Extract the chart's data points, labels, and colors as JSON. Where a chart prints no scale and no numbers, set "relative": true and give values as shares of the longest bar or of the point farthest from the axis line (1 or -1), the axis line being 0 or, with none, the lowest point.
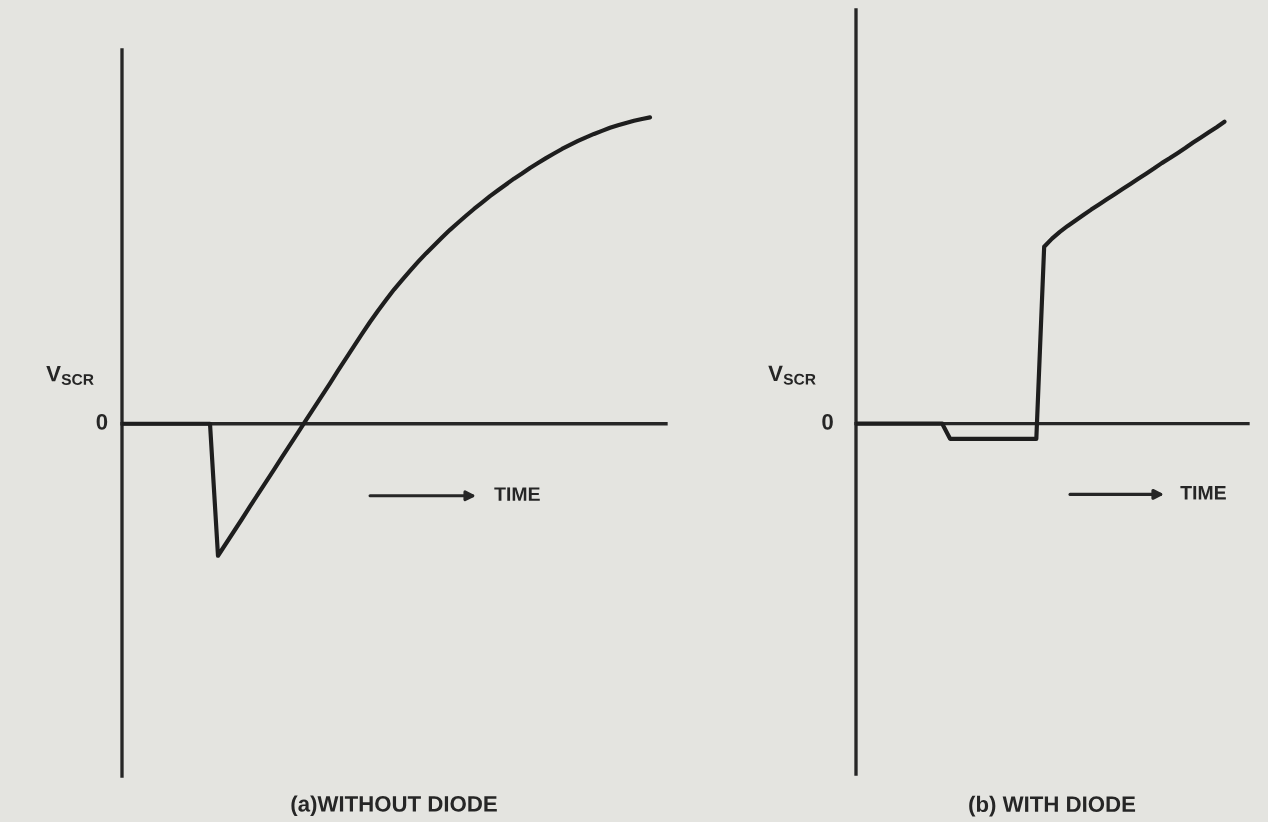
{
  "chart_data": [
    {
      "type": "line",
      "title": "(a)WITHOUT DIODE",
      "ylabel": "V$_{SCR}$",
      "xlabel": "TIME",
      "relative": true,
      "annotations": [
        "0"
      ],
      "categories": [
        null,
        null,
        null,
        null,
        null,
        null,
        null,
        null,
        null,
        null,
        null,
        null,
        null,
        null,
        null,
        null,
        null,
        null,
        null,
        null,
        null,
        null,
        null,
        null,
        null,
        null,
        null,
        null,
        null,
        null,
        null,
        null,
        null,
        null,
        null,
        null,
        null,
        null,
        null,
        null,
        null,
        null,
        null,
        null,
        null,
        null,
        null,
        null,
        null,
        null,
        null,
        null,
        null,
        null,
        null,
        null,
        null,
        null,
        null,
        null,
        null,
        null,
        null,
        null,
        null,
        null,
        null,
        null,
        null
      ],
      "series": [
        {
          "color": "#1e1e1e",
          "values": [
            0,
            0,
            0,
            0,
            0,
            0,
            0,
            0,
            0,
            0,
            0,
            0,
            -0.431,
            -0.391,
            -0.351,
            -0.311,
            -0.27,
            -0.23,
            -0.19,
            -0.15,
            -0.109,
            -0.069,
            -0.029,
            0.012,
            0.052,
            0.092,
            0.132,
            0.173,
            0.213,
            0.253,
            0.293,
            0.332,
            0.369,
            0.404,
            0.438,
            0.469,
            0.499,
            0.528,
            0.556,
            0.582,
            0.608,
            0.633,
            0.656,
            0.679,
            0.701,
            0.722,
            0.743,
            0.762,
            0.781,
            0.8,
            0.817,
            0.835,
            0.851,
            0.867,
            0.882,
            0.897,
            0.91,
            0.923,
            0.935,
            0.946,
            0.956,
            0.966,
            0.974,
            0.982,
            0.989,
            0.995,
            1,
            null,
            null
          ]
        }
      ]
    },
    {
      "type": "line",
      "title": "(b) WITH DIODE",
      "ylabel": "V$_{SCR}$",
      "xlabel": "TIME",
      "relative": true,
      "annotations": [
        "0"
      ],
      "categories": [
        null,
        null,
        null,
        null,
        null,
        null,
        null,
        null,
        null,
        null,
        null,
        null,
        null,
        null,
        null,
        null,
        null,
        null,
        null,
        null,
        null,
        null,
        null,
        null,
        null,
        null,
        null,
        null,
        null,
        null,
        null,
        null,
        null,
        null,
        null,
        null,
        null,
        null,
        null,
        null,
        null,
        null,
        null,
        null,
        null,
        null,
        null,
        null,
        null,
        null,
        null
      ],
      "series": [
        {
          "color": "#1e1e1e",
          "values": [
            0,
            0,
            0,
            0,
            0,
            0,
            0,
            0,
            0,
            0,
            0,
            0,
            -0.05,
            -0.05,
            -0.05,
            -0.05,
            -0.05,
            -0.05,
            -0.05,
            -0.05,
            -0.05,
            -0.05,
            -0.05,
            -0.05,
            0.586,
            0.613,
            0.635,
            0.655,
            0.673,
            0.691,
            0.709,
            0.726,
            0.743,
            0.76,
            0.777,
            0.794,
            0.811,
            0.828,
            0.845,
            0.863,
            0.879,
            0.896,
            0.913,
            0.931,
            0.948,
            0.965,
            0.982,
            1,
            null,
            null,
            null
          ]
        }
      ]
    }
  ]
}
